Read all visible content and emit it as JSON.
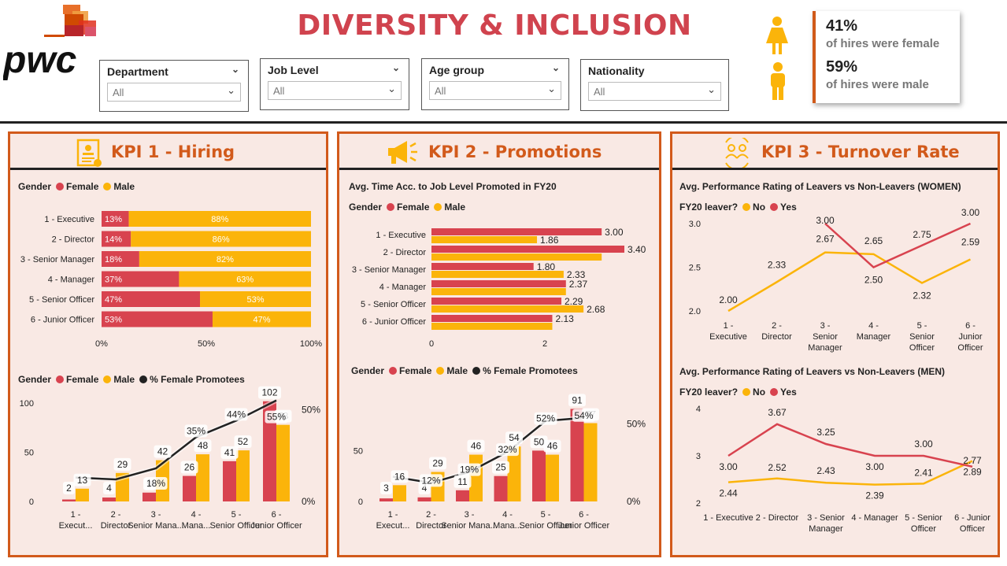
{
  "header": {
    "logo_text": "pwc",
    "title": "DIVERSITY & INCLUSION"
  },
  "filters": [
    {
      "label": "Department",
      "value": "All"
    },
    {
      "label": "Job Level",
      "value": "All"
    },
    {
      "label": "Age group",
      "value": "All"
    },
    {
      "label": "Nationality",
      "value": "All"
    }
  ],
  "hires": {
    "female_pct": "41%",
    "female_text": "of hires were female",
    "male_pct": "59%",
    "male_text": "of hires were male"
  },
  "colors": {
    "female": "#d8434f",
    "male": "#fbb40a",
    "line": "#222222",
    "accent": "#d25a1b",
    "panel_bg": "#f9e9e4"
  },
  "kpi1": {
    "title": "KPI 1 - Hiring",
    "gender_legend": {
      "label": "Gender",
      "female": "Female",
      "male": "Male"
    },
    "combo_legend": {
      "label": "Gender",
      "female": "Female",
      "male": "Male",
      "line": "% Female Promotees"
    }
  },
  "kpi2": {
    "title": "KPI 2 - Promotions",
    "subtitle": "Avg. Time Acc. to Job Level Promoted in FY20",
    "gender_legend": {
      "label": "Gender",
      "female": "Female",
      "male": "Male"
    },
    "combo_legend": {
      "label": "Gender",
      "female": "Female",
      "male": "Male",
      "line": "% Female Promotees"
    }
  },
  "kpi3": {
    "title": "KPI 3 - Turnover Rate",
    "women_title": "Avg. Performance Rating of Leavers vs Non-Leavers (WOMEN)",
    "men_title": "Avg. Performance Rating of Leavers vs Non-Leavers (MEN)",
    "legend": {
      "label": "FY20 leaver?",
      "no": "No",
      "yes": "Yes"
    }
  },
  "chart_data": [
    {
      "id": "hiring_stacked",
      "type": "bar",
      "orientation": "horizontal",
      "stacked": "100%",
      "categories": [
        "1 - Executive",
        "2 - Director",
        "3 - Senior Manager",
        "4 - Manager",
        "5 - Senior Officer",
        "6 - Junior Officer"
      ],
      "series": [
        {
          "name": "Female",
          "values": [
            13,
            14,
            18,
            37,
            47,
            53
          ],
          "labels": [
            "13%",
            "14%",
            "18%",
            "37%",
            "47%",
            "53%"
          ]
        },
        {
          "name": "Male",
          "values": [
            88,
            86,
            82,
            63,
            53,
            47
          ],
          "labels": [
            "88%",
            "86%",
            "82%",
            "63%",
            "53%",
            "47%"
          ]
        }
      ],
      "x_ticks": [
        "0%",
        "50%",
        "100%"
      ]
    },
    {
      "id": "hiring_combo",
      "type": "bar",
      "categories": [
        "1 - Execut...",
        "2 - Director",
        "3 - Senior Mana...",
        "4 - Mana...",
        "5 - Senior Officer",
        "6 - Junior Officer"
      ],
      "series": [
        {
          "name": "Female",
          "values": [
            2,
            4,
            9,
            26,
            41,
            102
          ]
        },
        {
          "name": "Male",
          "values": [
            13,
            29,
            42,
            48,
            52,
            78
          ]
        },
        {
          "name": "% Female Promotees",
          "type": "line",
          "values": [
            13,
            12,
            18,
            35,
            44,
            55
          ],
          "labels": [
            "",
            "",
            "18%",
            "35%",
            "44%",
            "55%"
          ]
        }
      ],
      "y_ticks": [
        "0",
        "50",
        "100"
      ],
      "y2_ticks": [
        "0%",
        "50%"
      ],
      "ylim": [
        0,
        105
      ],
      "y2lim": [
        0,
        60
      ]
    },
    {
      "id": "promo_time",
      "type": "bar",
      "orientation": "horizontal",
      "categories": [
        "1 - Executive",
        "2 - Director",
        "3 - Senior Manager",
        "4 - Manager",
        "5 - Senior Officer",
        "6 - Junior Officer"
      ],
      "series": [
        {
          "name": "Female",
          "values": [
            3.0,
            3.4,
            1.8,
            2.37,
            2.29,
            2.13
          ],
          "labels": [
            "3.00",
            "3.40",
            "1.80",
            "2.37",
            "2.29",
            "2.13"
          ]
        },
        {
          "name": "Male",
          "values": [
            1.86,
            3.0,
            2.33,
            2.37,
            2.68,
            2.13
          ],
          "labels": [
            "1.86",
            "",
            "2.33",
            "",
            "2.68",
            ""
          ]
        }
      ],
      "x_ticks": [
        "0",
        "2"
      ],
      "xlim": [
        0,
        3.4
      ]
    },
    {
      "id": "promo_combo",
      "type": "bar",
      "categories": [
        "1 - Execut...",
        "2 - Director",
        "3 - Senior Mana...",
        "4 - Mana...",
        "5 - Senior Officer",
        "6 - Junior Officer"
      ],
      "series": [
        {
          "name": "Female",
          "values": [
            3,
            4,
            11,
            25,
            50,
            91
          ]
        },
        {
          "name": "Male",
          "values": [
            16,
            29,
            46,
            54,
            46,
            77
          ]
        },
        {
          "name": "% Female Promotees",
          "type": "line",
          "values": [
            16,
            12,
            19,
            32,
            52,
            54
          ],
          "labels": [
            "",
            "12%",
            "19%",
            "32%",
            "52%",
            "54%"
          ]
        }
      ],
      "y_ticks": [
        "0",
        "50"
      ],
      "y2_ticks": [
        "0%",
        "50%"
      ],
      "ylim": [
        0,
        95
      ],
      "y2lim": [
        0,
        60
      ]
    },
    {
      "id": "turnover_women",
      "type": "line",
      "categories": [
        "1 - Executive",
        "2 - Director",
        "3 - Senior Manager",
        "4 - Manager",
        "5 - Senior Officer",
        "6 - Junior Officer"
      ],
      "series": [
        {
          "name": "No",
          "values": [
            2.0,
            2.33,
            2.67,
            2.65,
            2.32,
            2.59
          ]
        },
        {
          "name": "Yes",
          "values": [
            null,
            null,
            3.0,
            2.5,
            2.75,
            3.0
          ]
        }
      ],
      "y_ticks": [
        "2.0",
        "2.5",
        "3.0"
      ],
      "ylim": [
        2.0,
        3.0
      ]
    },
    {
      "id": "turnover_men",
      "type": "line",
      "categories": [
        "1 - Executive",
        "2 - Director",
        "3 - Senior Manager",
        "4 - Manager",
        "5 - Senior Officer",
        "6 - Junior Officer"
      ],
      "series": [
        {
          "name": "No",
          "values": [
            2.44,
            2.52,
            2.43,
            2.39,
            2.41,
            2.89
          ]
        },
        {
          "name": "Yes",
          "values": [
            3.0,
            3.67,
            3.25,
            3.0,
            3.0,
            2.77
          ]
        }
      ],
      "y_ticks": [
        "2",
        "3",
        "4"
      ],
      "ylim": [
        2,
        4
      ]
    }
  ]
}
